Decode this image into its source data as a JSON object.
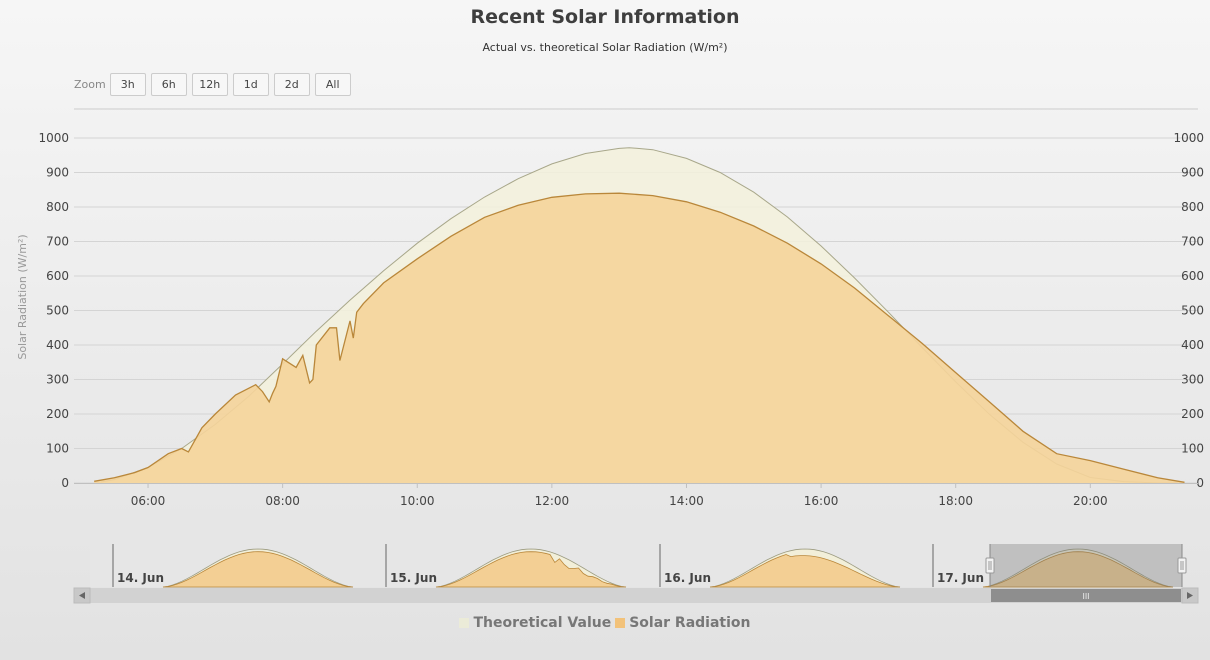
{
  "title": "Recent Solar Information",
  "subtitle": "Actual vs. theoretical Solar Radiation (W/m²)",
  "zoom": {
    "label": "Zoom",
    "buttons": [
      "3h",
      "6h",
      "12h",
      "1d",
      "2d",
      "All"
    ]
  },
  "legend": {
    "items": [
      {
        "name": "Theoretical Value",
        "color": "#ebebd8"
      },
      {
        "name": "Solar Radiation",
        "color": "#f2c27a"
      }
    ]
  },
  "navigator": {
    "day_labels": [
      "14. Jun",
      "15. Jun",
      "16. Jun",
      "17. Jun"
    ],
    "grip": "III"
  },
  "chart_data": {
    "type": "area",
    "title": "Recent Solar Information",
    "subtitle": "Actual vs. theoretical Solar Radiation (W/m²)",
    "ylabel": "Solar Radiation (W/m²)",
    "xlabel": "",
    "ylim": [
      0,
      1000
    ],
    "yticks": [
      0,
      100,
      200,
      300,
      400,
      500,
      600,
      700,
      800,
      900,
      1000
    ],
    "xlim_hours": [
      4.9,
      21.6
    ],
    "xticks": [
      "06:00",
      "08:00",
      "10:00",
      "12:00",
      "14:00",
      "16:00",
      "18:00",
      "20:00"
    ],
    "xtick_hours": [
      6,
      8,
      10,
      12,
      14,
      16,
      18,
      20
    ],
    "grid": true,
    "legend_position": "bottom-center",
    "series": [
      {
        "name": "Theoretical Value",
        "color": "#ebebd8",
        "line_color": "#a8a78a",
        "x": [
          5.3,
          5.5,
          6.0,
          6.5,
          7.0,
          7.5,
          8.0,
          8.5,
          9.0,
          9.5,
          10.0,
          10.5,
          11.0,
          11.5,
          12.0,
          12.5,
          13.0,
          13.15,
          13.5,
          14.0,
          14.5,
          15.0,
          15.5,
          16.0,
          16.5,
          17.0,
          17.5,
          18.0,
          18.5,
          19.0,
          19.5,
          20.0,
          20.5,
          21.0,
          21.3
        ],
        "values": [
          3,
          10,
          45,
          100,
          170,
          252,
          345,
          440,
          530,
          615,
          695,
          766,
          829,
          882,
          925,
          955,
          970,
          972,
          966,
          941,
          900,
          843,
          771,
          687,
          594,
          495,
          393,
          293,
          199,
          118,
          55,
          16,
          4,
          0,
          0
        ]
      },
      {
        "name": "Solar Radiation",
        "color": "#f2c27a",
        "line_color": "#b9873a",
        "x": [
          5.2,
          5.5,
          5.8,
          6.0,
          6.3,
          6.5,
          6.6,
          6.8,
          7.0,
          7.3,
          7.6,
          7.7,
          7.8,
          7.85,
          7.9,
          8.0,
          8.2,
          8.3,
          8.4,
          8.45,
          8.5,
          8.7,
          8.8,
          8.85,
          9.0,
          9.05,
          9.1,
          9.2,
          9.5,
          10.0,
          10.5,
          11.0,
          11.5,
          12.0,
          12.5,
          13.0,
          13.5,
          14.0,
          14.5,
          15.0,
          15.5,
          16.0,
          16.5,
          17.0,
          17.5,
          18.0,
          18.5,
          19.0,
          19.5,
          20.0,
          20.5,
          21.0,
          21.4
        ],
        "values": [
          5,
          15,
          30,
          45,
          85,
          100,
          90,
          160,
          200,
          255,
          285,
          265,
          235,
          260,
          280,
          360,
          335,
          370,
          290,
          300,
          400,
          450,
          450,
          355,
          470,
          420,
          495,
          520,
          580,
          650,
          715,
          770,
          805,
          828,
          838,
          840,
          833,
          815,
          785,
          745,
          695,
          635,
          565,
          485,
          405,
          320,
          235,
          150,
          85,
          65,
          40,
          15,
          2
        ]
      }
    ],
    "navigator_series": {
      "days": [
        "14. Jun",
        "15. Jun",
        "16. Jun",
        "17. Jun"
      ]
    }
  }
}
